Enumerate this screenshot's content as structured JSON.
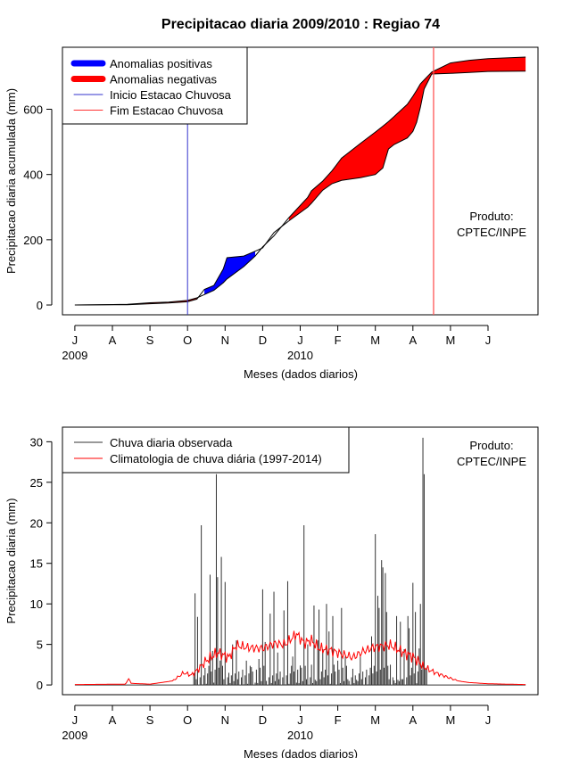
{
  "title": "Precipitacao diaria 2009/2010 : Regiao 74",
  "months": [
    "J",
    "A",
    "S",
    "O",
    "N",
    "D",
    "J",
    "F",
    "M",
    "A",
    "M",
    "J"
  ],
  "years": [
    "2009",
    "2010"
  ],
  "chart_data": [
    {
      "type": "area",
      "ylabel": "Precipitacao diaria acumulada (mm)",
      "xlabel": "Meses (dados diarios)",
      "yticks": [
        0,
        200,
        400,
        600
      ],
      "ylim": [
        -30,
        790
      ],
      "xlim_months": [
        -0.33,
        12.33
      ],
      "legend": {
        "position": "top-left",
        "entries": [
          "Anomalias positivas",
          "Anomalias negativas",
          "Inicio Estacao Chuvosa",
          "Fim Estacao Chuvosa"
        ]
      },
      "annotation": [
        "Produto:",
        "CPTEC/INPE"
      ],
      "rainy_season_start_month": 3.0,
      "rainy_season_end_month": 9.55,
      "observed_accumulated": [
        [
          0,
          0
        ],
        [
          1.4,
          1
        ],
        [
          2,
          4
        ],
        [
          2.5,
          6
        ],
        [
          3,
          10
        ],
        [
          3.25,
          18
        ],
        [
          3.45,
          48
        ],
        [
          3.7,
          60
        ],
        [
          3.95,
          110
        ],
        [
          4.05,
          145
        ],
        [
          4.5,
          150
        ],
        [
          4.8,
          165
        ],
        [
          5,
          175
        ],
        [
          5.3,
          222
        ],
        [
          5.7,
          258
        ],
        [
          6.2,
          300
        ],
        [
          6.3,
          312
        ],
        [
          6.6,
          352
        ],
        [
          6.85,
          372
        ],
        [
          7.1,
          382
        ],
        [
          7.6,
          390
        ],
        [
          8,
          400
        ],
        [
          8.2,
          420
        ],
        [
          8.35,
          478
        ],
        [
          8.5,
          492
        ],
        [
          8.85,
          512
        ],
        [
          9,
          532
        ],
        [
          9.1,
          560
        ],
        [
          9.2,
          606
        ],
        [
          9.3,
          662
        ],
        [
          9.5,
          708
        ],
        [
          10,
          710
        ],
        [
          10.5,
          713
        ],
        [
          11,
          716
        ],
        [
          12,
          717
        ]
      ],
      "climatology_accumulated": [
        [
          0,
          0
        ],
        [
          1.4,
          2
        ],
        [
          2,
          7
        ],
        [
          2.5,
          9
        ],
        [
          3,
          14
        ],
        [
          3.25,
          22
        ],
        [
          3.45,
          32
        ],
        [
          3.7,
          45
        ],
        [
          3.95,
          68
        ],
        [
          4.05,
          80
        ],
        [
          4.5,
          118
        ],
        [
          4.8,
          150
        ],
        [
          5,
          178
        ],
        [
          5.3,
          212
        ],
        [
          5.7,
          268
        ],
        [
          6.2,
          330
        ],
        [
          6.3,
          350
        ],
        [
          6.6,
          380
        ],
        [
          6.85,
          412
        ],
        [
          7.1,
          450
        ],
        [
          7.6,
          495
        ],
        [
          8,
          530
        ],
        [
          8.2,
          548
        ],
        [
          8.35,
          562
        ],
        [
          8.5,
          578
        ],
        [
          8.85,
          615
        ],
        [
          9,
          640
        ],
        [
          9.1,
          658
        ],
        [
          9.2,
          678
        ],
        [
          9.3,
          690
        ],
        [
          9.5,
          714
        ],
        [
          10,
          742
        ],
        [
          10.5,
          750
        ],
        [
          11,
          755
        ],
        [
          12,
          760
        ]
      ]
    },
    {
      "type": "bar",
      "ylabel": "Precipitacao diaria (mm)",
      "xlabel": "Meses (dados diarios)",
      "yticks": [
        0,
        5,
        10,
        15,
        20,
        25,
        30
      ],
      "ylim": [
        -1.2,
        31.8
      ],
      "xlim_months": [
        -0.33,
        12.33
      ],
      "legend": {
        "position": "top-left",
        "entries": [
          "Chuva diaria observada",
          "Climatologia de chuva diária (1997-2014)"
        ]
      },
      "annotation": [
        "Produto:",
        "CPTEC/INPE"
      ],
      "observed_spikes": [
        [
          3.2,
          11.3
        ],
        [
          3.25,
          8.4
        ],
        [
          3.35,
          19.7
        ],
        [
          3.45,
          2.1
        ],
        [
          3.6,
          13.6
        ],
        [
          3.65,
          4.2
        ],
        [
          3.75,
          26.0
        ],
        [
          3.8,
          13.3
        ],
        [
          3.85,
          3.0
        ],
        [
          3.9,
          15.8
        ],
        [
          4.0,
          12.7
        ],
        [
          4.1,
          1.5
        ],
        [
          4.2,
          5.0
        ],
        [
          4.3,
          5.5
        ],
        [
          4.55,
          3.0
        ],
        [
          4.7,
          2.2
        ],
        [
          4.9,
          3.2
        ],
        [
          5.0,
          11.8
        ],
        [
          5.05,
          5.3
        ],
        [
          5.2,
          8.8
        ],
        [
          5.3,
          11.5
        ],
        [
          5.4,
          4.0
        ],
        [
          5.55,
          9.2
        ],
        [
          5.65,
          12.8
        ],
        [
          5.8,
          3.5
        ],
        [
          5.85,
          6.0
        ],
        [
          6.0,
          2.4
        ],
        [
          6.1,
          19.7
        ],
        [
          6.2,
          5.0
        ],
        [
          6.3,
          2.5
        ],
        [
          6.35,
          9.8
        ],
        [
          6.45,
          5.5
        ],
        [
          6.5,
          9.3
        ],
        [
          6.6,
          4.4
        ],
        [
          6.7,
          10.0
        ],
        [
          6.75,
          6.6
        ],
        [
          6.85,
          8.5
        ],
        [
          6.9,
          2.5
        ],
        [
          7.0,
          3.0
        ],
        [
          7.1,
          9.5
        ],
        [
          7.2,
          3.5
        ],
        [
          7.4,
          2.0
        ],
        [
          7.6,
          3.5
        ],
        [
          7.9,
          6.0
        ],
        [
          8.0,
          18.6
        ],
        [
          8.05,
          11.0
        ],
        [
          8.1,
          9.5
        ],
        [
          8.15,
          15.4
        ],
        [
          8.2,
          14.5
        ],
        [
          8.25,
          13.8
        ],
        [
          8.3,
          9.0
        ],
        [
          8.4,
          2.5
        ],
        [
          8.55,
          8.5
        ],
        [
          8.65,
          7.8
        ],
        [
          8.75,
          4.4
        ],
        [
          8.85,
          8.5
        ],
        [
          8.9,
          7.0
        ],
        [
          9.0,
          12.6
        ],
        [
          9.05,
          9.0
        ],
        [
          9.15,
          4.5
        ],
        [
          9.2,
          10.0
        ],
        [
          9.25,
          30.5
        ],
        [
          9.3,
          26.0
        ],
        [
          9.35,
          2.0
        ]
      ],
      "climatology_profile": [
        [
          0,
          0.05
        ],
        [
          1.35,
          0.1
        ],
        [
          1.45,
          0.9
        ],
        [
          1.5,
          0.2
        ],
        [
          2,
          0.1
        ],
        [
          2.6,
          0.5
        ],
        [
          2.9,
          1.5
        ],
        [
          3.1,
          1.2
        ],
        [
          3.3,
          2.0
        ],
        [
          3.5,
          3.0
        ],
        [
          3.8,
          4.0
        ],
        [
          4.1,
          3.4
        ],
        [
          4.3,
          4.9
        ],
        [
          4.6,
          4.6
        ],
        [
          5.0,
          4.5
        ],
        [
          5.3,
          5.1
        ],
        [
          5.6,
          5.0
        ],
        [
          5.9,
          6.3
        ],
        [
          6.1,
          5.2
        ],
        [
          6.3,
          5.5
        ],
        [
          6.5,
          4.5
        ],
        [
          6.8,
          4.3
        ],
        [
          7.1,
          3.8
        ],
        [
          7.4,
          3.4
        ],
        [
          7.7,
          4.2
        ],
        [
          8.0,
          4.7
        ],
        [
          8.4,
          4.9
        ],
        [
          8.7,
          4.1
        ],
        [
          9.0,
          3.5
        ],
        [
          9.3,
          2.2
        ],
        [
          9.6,
          1.5
        ],
        [
          9.9,
          1.0
        ],
        [
          10.2,
          0.5
        ],
        [
          10.5,
          0.3
        ],
        [
          11,
          0.15
        ],
        [
          12,
          0.05
        ]
      ]
    }
  ]
}
